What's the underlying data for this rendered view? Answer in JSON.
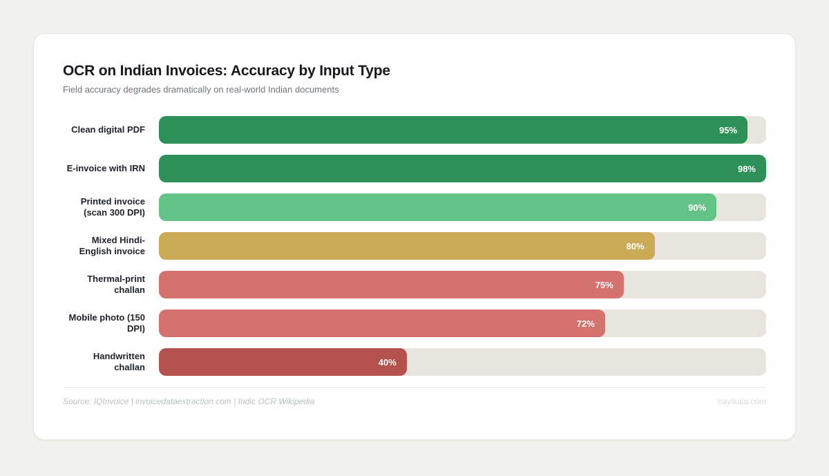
{
  "page": {
    "background_color": "#f2f1ec",
    "card_color": "#ffffff"
  },
  "header": {
    "title": "OCR on Indian Invoices: Accuracy by Input Type",
    "subtitle": "Field accuracy degrades dramatically on real-world Indian documents"
  },
  "chart_data": {
    "type": "bar",
    "orientation": "horizontal",
    "title": "OCR on Indian Invoices: Accuracy by Input Type",
    "subtitle": "Field accuracy degrades dramatically on real-world Indian documents",
    "xlabel": "",
    "ylabel": "",
    "xlim": [
      0,
      98
    ],
    "grid": false,
    "legend": false,
    "categories": [
      "Clean digital PDF",
      "E-invoice with IRN",
      "Printed invoice (scan 300 DPI)",
      "Mixed Hindi-English invoice",
      "Thermal-print challan",
      "Mobile photo (150 DPI)",
      "Handwritten challan"
    ],
    "values": [
      95,
      98,
      90,
      80,
      75,
      72,
      40
    ],
    "value_labels": [
      "95%",
      "98%",
      "90%",
      "80%",
      "75%",
      "72%",
      "40%"
    ],
    "bar_colors": [
      "#2e8f57",
      "#2e8f57",
      "#64c287",
      "#c9ab55",
      "#d4726d",
      "#d4726d",
      "#b4524e"
    ],
    "track_color": "#e9e5de",
    "value_label_color": "#ffffff",
    "value_label_position": "inside-end"
  },
  "footer": {
    "source": "Source: IQInvoice | invoicedataextraction.com | Indic OCR Wikipedia",
    "watermark": "nayikala.com"
  }
}
